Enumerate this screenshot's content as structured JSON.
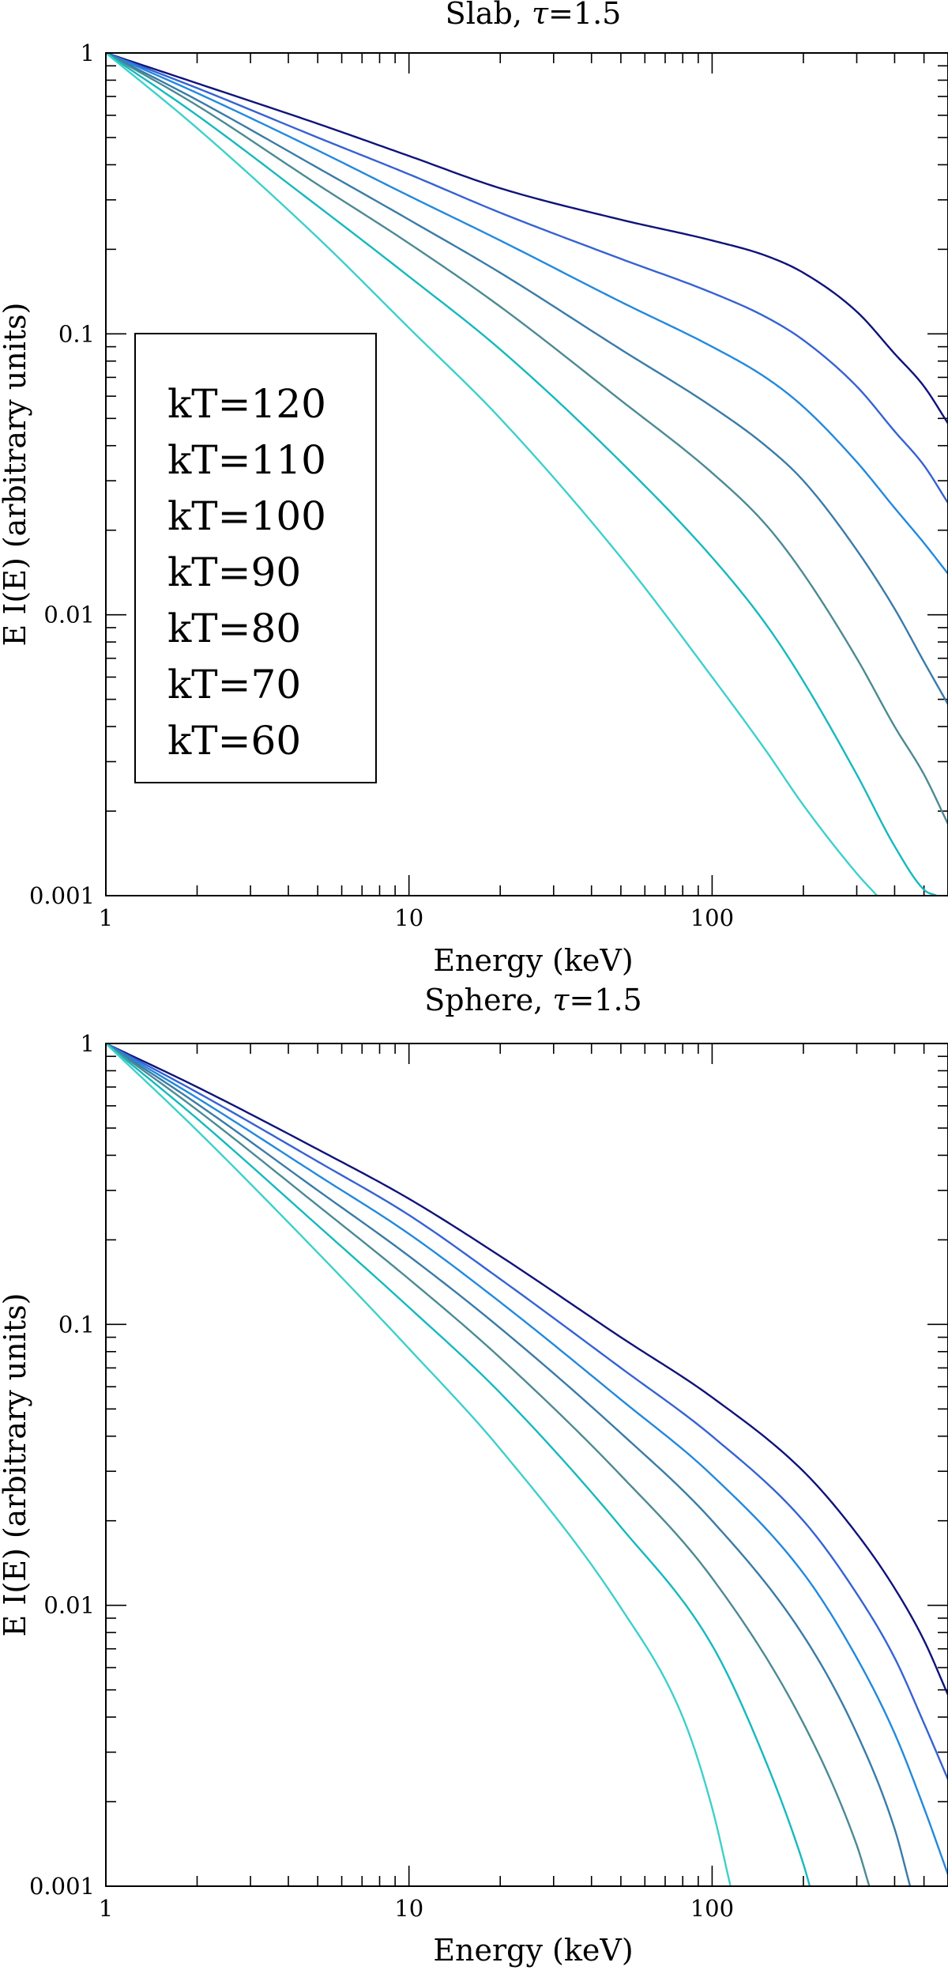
{
  "chart_data": [
    {
      "id": "slab",
      "type": "line",
      "title": "Slab, τ=1.5",
      "title_prefix": "Slab,",
      "title_symbol": "τ",
      "title_value": "=1.5",
      "xlabel": "Energy (keV)",
      "ylabel": "E I(E)  (arbitrary units)",
      "xscale": "log",
      "yscale": "log",
      "xlim": [
        1,
        600
      ],
      "ylim": [
        0.001,
        1
      ],
      "xticks": [
        {
          "value": 1,
          "label": "1"
        },
        {
          "value": 10,
          "label": "10"
        },
        {
          "value": 100,
          "label": "100"
        }
      ],
      "yticks": [
        {
          "value": 0.001,
          "label": "0.001"
        },
        {
          "value": 0.01,
          "label": "0.01"
        },
        {
          "value": 0.1,
          "label": "0.1"
        },
        {
          "value": 1,
          "label": "1"
        }
      ],
      "legend_position": "center-left",
      "series": [
        {
          "name": "kT=120",
          "color": "#0f137a",
          "x": [
            1,
            2,
            5,
            10,
            20,
            50,
            100,
            150,
            200,
            300,
            400,
            500,
            600
          ],
          "y": [
            1,
            0.78,
            0.56,
            0.43,
            0.33,
            0.255,
            0.215,
            0.19,
            0.165,
            0.12,
            0.085,
            0.065,
            0.048
          ]
        },
        {
          "name": "kT=110",
          "color": "#3662d3",
          "x": [
            1,
            2,
            5,
            10,
            20,
            50,
            100,
            150,
            200,
            300,
            400,
            500,
            600
          ],
          "y": [
            1,
            0.75,
            0.5,
            0.37,
            0.27,
            0.185,
            0.14,
            0.115,
            0.095,
            0.065,
            0.045,
            0.034,
            0.025
          ]
        },
        {
          "name": "kT=100",
          "color": "#2389dd",
          "x": [
            1,
            2,
            5,
            10,
            20,
            50,
            100,
            150,
            200,
            300,
            400,
            500,
            600
          ],
          "y": [
            1,
            0.72,
            0.45,
            0.31,
            0.215,
            0.13,
            0.09,
            0.07,
            0.055,
            0.035,
            0.024,
            0.018,
            0.014
          ]
        },
        {
          "name": "kT=90",
          "color": "#3a7ba8",
          "x": [
            1,
            2,
            5,
            10,
            20,
            50,
            100,
            150,
            200,
            300,
            400,
            500,
            600
          ],
          "y": [
            1,
            0.68,
            0.39,
            0.255,
            0.165,
            0.088,
            0.055,
            0.04,
            0.03,
            0.017,
            0.0105,
            0.0068,
            0.0048
          ]
        },
        {
          "name": "kT=80",
          "color": "#4c8a93",
          "x": [
            1,
            2,
            5,
            10,
            20,
            50,
            100,
            150,
            200,
            300,
            400,
            500,
            600
          ],
          "y": [
            1,
            0.65,
            0.34,
            0.21,
            0.125,
            0.058,
            0.032,
            0.021,
            0.014,
            0.007,
            0.004,
            0.0027,
            0.0018
          ]
        },
        {
          "name": "kT=70",
          "color": "#16b9be",
          "x": [
            1,
            2,
            5,
            10,
            20,
            50,
            100,
            150,
            200,
            300,
            400,
            500,
            550
          ],
          "y": [
            1,
            0.6,
            0.285,
            0.16,
            0.088,
            0.035,
            0.016,
            0.0093,
            0.0058,
            0.0027,
            0.0015,
            0.00105,
            0.001
          ]
        },
        {
          "name": "kT=60",
          "color": "#3ed0cb",
          "x": [
            1,
            2,
            5,
            10,
            20,
            50,
            100,
            150,
            200,
            300,
            350
          ],
          "y": [
            1,
            0.54,
            0.22,
            0.105,
            0.05,
            0.016,
            0.006,
            0.0033,
            0.0021,
            0.0012,
            0.001
          ]
        }
      ]
    },
    {
      "id": "sphere",
      "type": "line",
      "title": "Sphere, τ=1.5",
      "title_prefix": "Sphere,",
      "title_symbol": "τ",
      "title_value": "=1.5",
      "xlabel": "Energy (keV)",
      "ylabel": "E I(E)  (arbitrary units)",
      "xscale": "log",
      "yscale": "log",
      "xlim": [
        1,
        600
      ],
      "ylim": [
        0.001,
        1
      ],
      "xticks": [
        {
          "value": 1,
          "label": "1"
        },
        {
          "value": 10,
          "label": "10"
        },
        {
          "value": 100,
          "label": "100"
        }
      ],
      "yticks": [
        {
          "value": 0.001,
          "label": "0.001"
        },
        {
          "value": 0.01,
          "label": "0.01"
        },
        {
          "value": 0.1,
          "label": "0.1"
        },
        {
          "value": 1,
          "label": "1"
        }
      ],
      "legend_position": "none",
      "series": [
        {
          "name": "kT=120",
          "color": "#0f137a",
          "x": [
            1,
            2,
            5,
            10,
            20,
            50,
            100,
            200,
            300,
            400,
            500,
            600
          ],
          "y": [
            1,
            0.7,
            0.42,
            0.28,
            0.175,
            0.09,
            0.055,
            0.03,
            0.018,
            0.0115,
            0.0075,
            0.0048
          ]
        },
        {
          "name": "kT=110",
          "color": "#3662d3",
          "x": [
            1,
            2,
            5,
            10,
            20,
            50,
            100,
            200,
            300,
            400,
            500,
            600
          ],
          "y": [
            1,
            0.67,
            0.38,
            0.245,
            0.145,
            0.07,
            0.04,
            0.02,
            0.011,
            0.0065,
            0.0038,
            0.0024
          ]
        },
        {
          "name": "kT=100",
          "color": "#2389dd",
          "x": [
            1,
            2,
            5,
            10,
            20,
            50,
            100,
            200,
            300,
            400,
            500,
            600
          ],
          "y": [
            1,
            0.64,
            0.34,
            0.21,
            0.12,
            0.054,
            0.029,
            0.013,
            0.0065,
            0.0035,
            0.0019,
            0.0011
          ]
        },
        {
          "name": "kT=90",
          "color": "#3a7ba8",
          "x": [
            1,
            2,
            5,
            10,
            20,
            50,
            100,
            200,
            300,
            400,
            450
          ],
          "y": [
            1,
            0.61,
            0.3,
            0.175,
            0.097,
            0.041,
            0.02,
            0.0078,
            0.0035,
            0.0016,
            0.001
          ]
        },
        {
          "name": "kT=80",
          "color": "#4c8a93",
          "x": [
            1,
            2,
            5,
            10,
            20,
            50,
            100,
            200,
            300,
            330
          ],
          "y": [
            1,
            0.58,
            0.265,
            0.145,
            0.076,
            0.029,
            0.0125,
            0.0038,
            0.0014,
            0.001
          ]
        },
        {
          "name": "kT=70",
          "color": "#16b9be",
          "x": [
            1,
            2,
            5,
            10,
            20,
            50,
            100,
            150,
            200,
            210
          ],
          "y": [
            1,
            0.54,
            0.225,
            0.115,
            0.057,
            0.019,
            0.0072,
            0.0028,
            0.0012,
            0.001
          ]
        },
        {
          "name": "kT=60",
          "color": "#3ed0cb",
          "x": [
            1,
            2,
            5,
            10,
            20,
            50,
            80,
            100,
            115
          ],
          "y": [
            1,
            0.49,
            0.18,
            0.082,
            0.036,
            0.0098,
            0.004,
            0.0019,
            0.001
          ]
        }
      ]
    }
  ]
}
